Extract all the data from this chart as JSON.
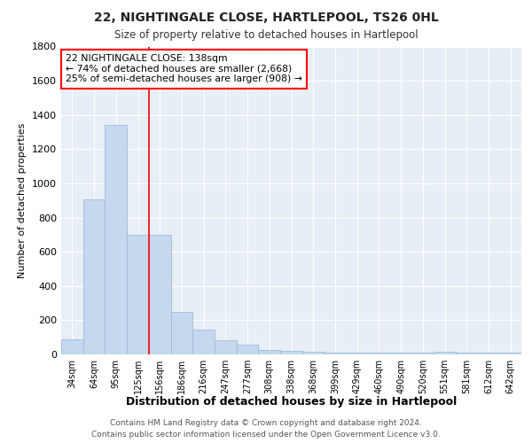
{
  "title1": "22, NIGHTINGALE CLOSE, HARTLEPOOL, TS26 0HL",
  "title2": "Size of property relative to detached houses in Hartlepool",
  "xlabel": "Distribution of detached houses by size in Hartlepool",
  "ylabel": "Number of detached properties",
  "categories": [
    "34sqm",
    "64sqm",
    "95sqm",
    "125sqm",
    "156sqm",
    "186sqm",
    "216sqm",
    "247sqm",
    "277sqm",
    "308sqm",
    "338sqm",
    "368sqm",
    "399sqm",
    "429sqm",
    "460sqm",
    "490sqm",
    "520sqm",
    "551sqm",
    "581sqm",
    "612sqm",
    "642sqm"
  ],
  "values": [
    90,
    905,
    1340,
    700,
    700,
    248,
    145,
    82,
    55,
    27,
    22,
    16,
    10,
    10,
    10,
    10,
    10,
    18,
    10,
    10,
    10
  ],
  "bar_color": "#c5d8ee",
  "bar_edge_color": "#a0bcd8",
  "red_line_x": 3.5,
  "annotation_lines": [
    "22 NIGHTINGALE CLOSE: 138sqm",
    "← 74% of detached houses are smaller (2,668)",
    "25% of semi-detached houses are larger (908) →"
  ],
  "footnote1": "Contains HM Land Registry data © Crown copyright and database right 2024.",
  "footnote2": "Contains public sector information licensed under the Open Government Licence v3.0.",
  "plot_bg_color": "#e8eef5",
  "grid_color": "#ffffff",
  "fig_bg_color": "#ffffff",
  "ylim": [
    0,
    1800
  ],
  "yticks": [
    0,
    200,
    400,
    600,
    800,
    1000,
    1200,
    1400,
    1600,
    1800
  ]
}
